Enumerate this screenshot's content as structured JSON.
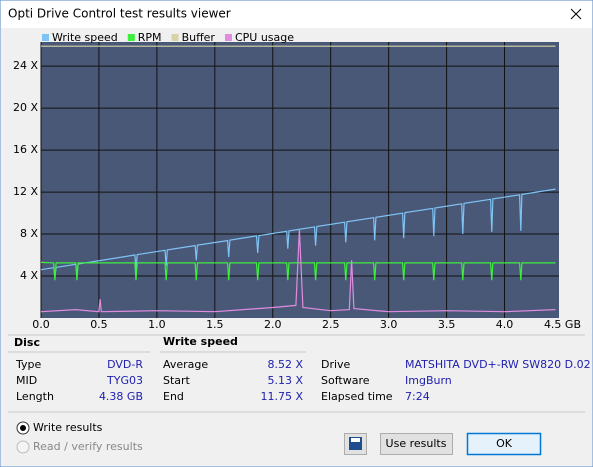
{
  "window": {
    "title": "Opti Drive Control test results viewer"
  },
  "chart_data": {
    "type": "line",
    "xlim": [
      0,
      4.47
    ],
    "ylim": [
      0,
      26.3
    ],
    "xticks": [
      {
        "value": 0,
        "label": "0.0"
      },
      {
        "value": 0.5,
        "label": "0.5"
      },
      {
        "value": 1,
        "label": "1.0"
      },
      {
        "value": 1.5,
        "label": "1.5"
      },
      {
        "value": 2,
        "label": "2.0"
      },
      {
        "value": 2.5,
        "label": "2.5"
      },
      {
        "value": 3,
        "label": "3.0"
      },
      {
        "value": 3.5,
        "label": "3.5"
      },
      {
        "value": 4,
        "label": "4.0"
      },
      {
        "value": 4.5,
        "label": "4.5 GB"
      }
    ],
    "yticks": [
      {
        "value": 4,
        "label": "4 X"
      },
      {
        "value": 8,
        "label": "8 X"
      },
      {
        "value": 12,
        "label": "12 X"
      },
      {
        "value": 16,
        "label": "16 X"
      },
      {
        "value": 20,
        "label": "20 X"
      },
      {
        "value": 24,
        "label": "24 X"
      }
    ],
    "grid": true,
    "series": [
      {
        "name": "Write speed",
        "color": "#7ec3f5",
        "x": [
          0,
          0.11,
          0.12,
          0.13,
          0.3,
          0.31,
          0.32,
          0.81,
          0.82,
          0.83,
          1.07,
          1.08,
          1.09,
          1.33,
          1.34,
          1.35,
          1.61,
          1.62,
          1.63,
          1.86,
          1.87,
          1.88,
          2.12,
          2.13,
          2.14,
          2.36,
          2.37,
          2.38,
          2.62,
          2.63,
          2.64,
          2.87,
          2.88,
          2.89,
          3.12,
          3.13,
          3.14,
          3.38,
          3.39,
          3.4,
          3.63,
          3.64,
          3.65,
          3.88,
          3.89,
          3.9,
          4.13,
          4.14,
          4.15,
          4.44
        ],
        "values": [
          4.6,
          4.79,
          3.9,
          4.82,
          5.12,
          4.0,
          5.15,
          6.0,
          4.5,
          6.04,
          6.45,
          5.0,
          6.49,
          6.9,
          5.5,
          6.94,
          7.38,
          5.8,
          7.42,
          7.82,
          6.2,
          7.85,
          8.26,
          6.6,
          8.3,
          8.68,
          6.9,
          8.72,
          9.13,
          7.2,
          9.17,
          9.56,
          7.4,
          9.6,
          9.99,
          7.6,
          10.03,
          10.44,
          7.8,
          10.48,
          10.88,
          8.0,
          10.92,
          11.31,
          8.2,
          11.35,
          11.74,
          8.3,
          11.78,
          12.28
        ]
      },
      {
        "name": "RPM",
        "color": "#3cf03c",
        "x": [
          0,
          0.11,
          0.12,
          0.13,
          0.3,
          0.31,
          0.32,
          0.81,
          0.82,
          0.83,
          1.07,
          1.08,
          1.09,
          1.33,
          1.34,
          1.35,
          1.61,
          1.62,
          1.63,
          1.86,
          1.87,
          1.88,
          2.12,
          2.13,
          2.14,
          2.36,
          2.37,
          2.38,
          2.62,
          2.63,
          2.64,
          2.87,
          2.88,
          2.89,
          3.12,
          3.13,
          3.14,
          3.38,
          3.39,
          3.4,
          3.63,
          3.64,
          3.65,
          3.88,
          3.89,
          3.9,
          4.13,
          4.14,
          4.15,
          4.44
        ],
        "values": [
          5.3,
          5.25,
          3.6,
          5.25,
          5.25,
          3.6,
          5.25,
          5.25,
          3.6,
          5.25,
          5.25,
          3.6,
          5.25,
          5.25,
          3.6,
          5.25,
          5.25,
          3.6,
          5.25,
          5.25,
          3.6,
          5.25,
          5.25,
          3.6,
          5.25,
          5.25,
          3.6,
          5.25,
          5.25,
          3.6,
          5.25,
          5.25,
          3.6,
          5.25,
          5.25,
          3.6,
          5.25,
          5.25,
          3.6,
          5.25,
          5.25,
          3.6,
          5.25,
          5.25,
          3.6,
          5.25,
          5.25,
          3.6,
          5.25,
          5.25
        ]
      },
      {
        "name": "Buffer",
        "color": "#d8d2a8",
        "x": [
          0,
          4.44
        ],
        "values": [
          25.9,
          25.9
        ]
      },
      {
        "name": "CPU usage",
        "color": "#e08ce0",
        "x": [
          0,
          0.3,
          0.5,
          0.51,
          0.52,
          1.0,
          1.5,
          2.0,
          2.2,
          2.23,
          2.26,
          2.5,
          2.66,
          2.68,
          2.7,
          3.0,
          3.5,
          4.0,
          4.44
        ],
        "values": [
          0.6,
          0.8,
          0.6,
          1.8,
          0.6,
          0.7,
          0.6,
          1.0,
          1.2,
          8.4,
          1.0,
          0.7,
          0.8,
          5.5,
          0.9,
          0.6,
          0.7,
          0.6,
          0.8
        ]
      }
    ]
  },
  "disc": {
    "title": "Disc",
    "rows": [
      [
        "Type",
        "DVD-R"
      ],
      [
        "MID",
        "TYG03"
      ],
      [
        "Length",
        "4.38 GB"
      ]
    ]
  },
  "write_speed": {
    "title": "Write speed",
    "rows": [
      [
        "Average",
        "8.52 X"
      ],
      [
        "Start",
        "5.13 X"
      ],
      [
        "End",
        "11.75 X"
      ]
    ]
  },
  "drive_info": {
    "rows": [
      [
        "Drive",
        "MATSHITA  DVD+-RW SW820 D.02"
      ],
      [
        "Software",
        "ImgBurn"
      ],
      [
        "Elapsed time",
        "7:24"
      ]
    ]
  },
  "options": [
    "Write results",
    "Read / verify results"
  ],
  "buttons": {
    "use": "Use results",
    "ok": "OK"
  }
}
